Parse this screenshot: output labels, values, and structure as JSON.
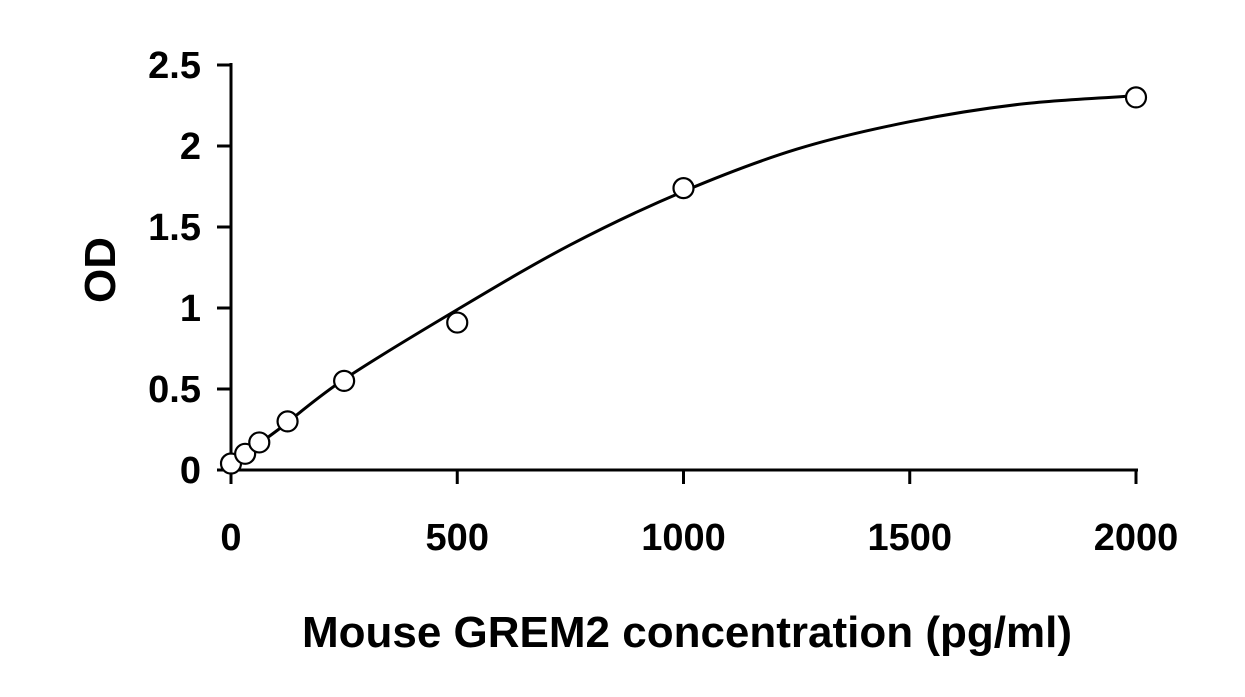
{
  "chart_data": {
    "type": "scatter",
    "title": "",
    "xlabel": "Mouse GREM2 concentration (pg/ml)",
    "ylabel": "OD",
    "xlim": [
      0,
      2000
    ],
    "ylim": [
      0,
      2.5
    ],
    "x_ticks": [
      0,
      500,
      1000,
      1500,
      2000
    ],
    "x_tick_labels": [
      "0",
      "500",
      "1000",
      "1500",
      "2000"
    ],
    "y_ticks": [
      0,
      0.5,
      1,
      1.5,
      2,
      2.5
    ],
    "y_tick_labels": [
      "0",
      "0.5",
      "1",
      "1.5",
      "2",
      "2.5"
    ],
    "grid": false,
    "series": [
      {
        "marker": "open-circle",
        "x": [
          0,
          31.25,
          62.5,
          125,
          250,
          500,
          1000,
          2000
        ],
        "y": [
          0.04,
          0.1,
          0.17,
          0.3,
          0.55,
          0.91,
          1.74,
          2.3
        ]
      }
    ],
    "fit_curve": {
      "type": "smooth-fit",
      "x": [
        0,
        100,
        250,
        500,
        750,
        1000,
        1250,
        1500,
        1750,
        2000
      ],
      "y": [
        0.04,
        0.24,
        0.56,
        0.99,
        1.39,
        1.72,
        1.98,
        2.15,
        2.26,
        2.31
      ]
    },
    "colors": {
      "marker_stroke": "#000000",
      "marker_fill": "#ffffff",
      "line": "#000000",
      "axis": "#000000"
    }
  }
}
